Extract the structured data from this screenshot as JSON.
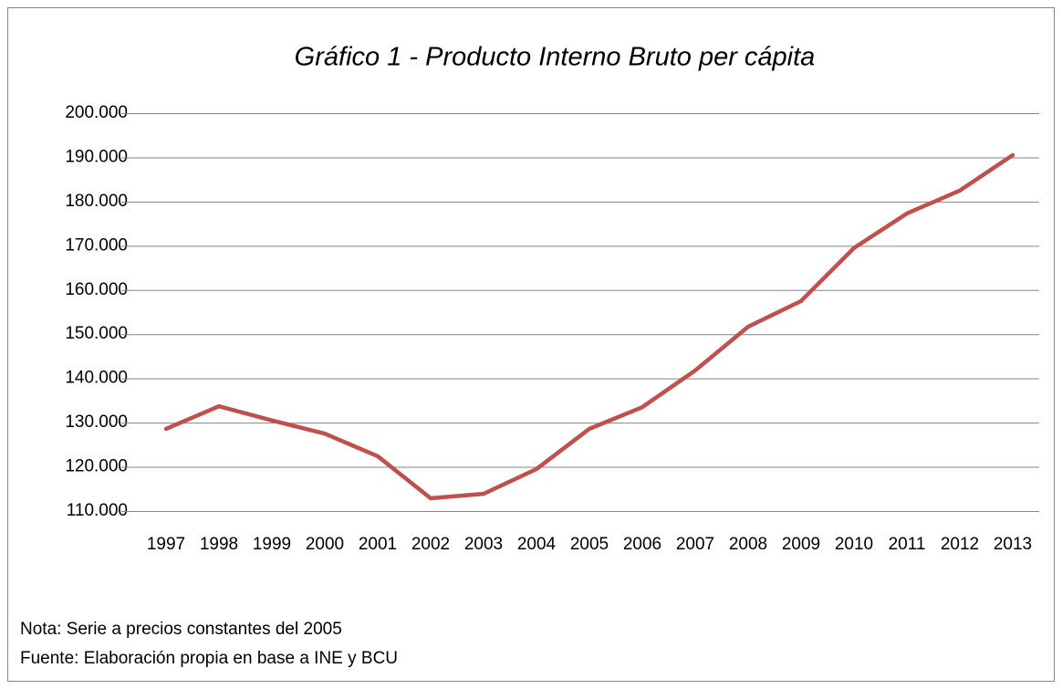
{
  "chart_data": {
    "type": "line",
    "title": "Gráfico 1 - Producto Interno Bruto per cápita",
    "categories": [
      "1997",
      "1998",
      "1999",
      "2000",
      "2001",
      "2002",
      "2003",
      "2004",
      "2005",
      "2006",
      "2007",
      "2008",
      "2009",
      "2010",
      "2011",
      "2012",
      "2013"
    ],
    "series": [
      {
        "name": "PIB per cápita",
        "color": "#c0504d",
        "values": [
          128600,
          133700,
          130500,
          127500,
          122400,
          112900,
          113900,
          119500,
          128600,
          133500,
          141800,
          151700,
          157500,
          169500,
          177300,
          182500,
          190500
        ]
      }
    ],
    "ylim": [
      110000,
      200000
    ],
    "yticks": [
      {
        "value": 110000,
        "label": "110.000"
      },
      {
        "value": 120000,
        "label": "120.000"
      },
      {
        "value": 130000,
        "label": "130.000"
      },
      {
        "value": 140000,
        "label": "140.000"
      },
      {
        "value": 150000,
        "label": "150.000"
      },
      {
        "value": 160000,
        "label": "160.000"
      },
      {
        "value": 170000,
        "label": "170.000"
      },
      {
        "value": 180000,
        "label": "180.000"
      },
      {
        "value": 190000,
        "label": "190.000"
      },
      {
        "value": 200000,
        "label": "200.000"
      }
    ],
    "grid": true,
    "notes": [
      "Nota: Serie a precios constantes del 2005",
      "Fuente: Elaboración propia en base a INE y BCU"
    ]
  }
}
